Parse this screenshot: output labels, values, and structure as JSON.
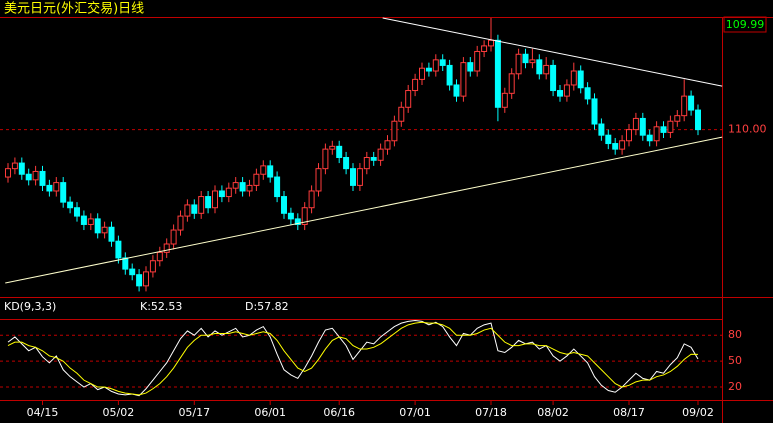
{
  "chart_data": {
    "type": "candlestick",
    "title": "美元日元(外汇交易)日线",
    "last_price": "109.99",
    "up_color": "#ff3c3c",
    "down_color": "#00ffff",
    "categories": [
      null,
      null,
      null,
      null,
      null,
      "04/15",
      null,
      null,
      null,
      null,
      null,
      null,
      null,
      null,
      null,
      null,
      "05/02",
      null,
      null,
      null,
      null,
      null,
      null,
      null,
      null,
      null,
      null,
      "05/17",
      null,
      null,
      null,
      null,
      null,
      null,
      null,
      null,
      null,
      null,
      "06/01",
      null,
      null,
      null,
      null,
      null,
      null,
      null,
      null,
      null,
      "06/16",
      null,
      null,
      null,
      null,
      null,
      null,
      null,
      null,
      null,
      null,
      "07/01",
      null,
      null,
      null,
      null,
      null,
      null,
      null,
      null,
      null,
      null,
      "07/18",
      null,
      null,
      null,
      null,
      null,
      null,
      null,
      null,
      "08/02",
      null,
      null,
      null,
      null,
      null,
      null,
      null,
      null,
      null,
      null,
      "08/17",
      null,
      null,
      null,
      null,
      null,
      null,
      null,
      null,
      null,
      "09/02"
    ],
    "open": [
      108.3,
      108.6,
      108.8,
      108.4,
      108.2,
      108.5,
      108.0,
      107.8,
      108.1,
      107.4,
      107.2,
      106.9,
      106.6,
      106.8,
      106.3,
      106.5,
      106.0,
      105.4,
      105.0,
      104.8,
      104.4,
      104.9,
      105.3,
      105.6,
      105.9,
      106.4,
      106.9,
      107.3,
      107.0,
      107.6,
      107.2,
      107.8,
      107.6,
      107.9,
      108.1,
      107.8,
      108.0,
      108.4,
      108.7,
      108.3,
      107.6,
      107.0,
      106.8,
      106.6,
      107.2,
      107.8,
      108.6,
      109.3,
      109.4,
      109.0,
      108.6,
      108.0,
      108.6,
      109.0,
      108.9,
      109.3,
      109.6,
      110.3,
      110.8,
      111.4,
      111.8,
      112.2,
      112.1,
      112.5,
      112.3,
      111.6,
      111.2,
      112.4,
      112.1,
      112.8,
      113.0,
      113.2,
      110.8,
      111.3,
      112.0,
      112.7,
      112.4,
      112.5,
      112.0,
      112.3,
      111.4,
      111.2,
      111.6,
      112.1,
      111.5,
      111.1,
      110.2,
      109.8,
      109.5,
      109.3,
      109.6,
      110.0,
      110.4,
      109.8,
      109.6,
      110.1,
      109.9,
      110.3,
      110.5,
      111.2,
      110.7
    ],
    "high": [
      108.8,
      109.0,
      109.0,
      108.6,
      108.7,
      108.7,
      108.2,
      108.3,
      108.3,
      107.6,
      107.4,
      107.1,
      107.0,
      107.0,
      106.7,
      106.7,
      106.2,
      105.6,
      105.2,
      105.0,
      105.1,
      105.5,
      105.8,
      106.1,
      106.6,
      107.1,
      107.5,
      107.5,
      107.8,
      107.8,
      108.0,
      108.0,
      108.1,
      108.3,
      108.3,
      108.2,
      108.6,
      108.9,
      108.9,
      108.5,
      107.8,
      107.2,
      107.0,
      107.4,
      108.0,
      108.8,
      109.5,
      109.6,
      109.6,
      109.2,
      108.8,
      108.8,
      109.2,
      109.2,
      109.5,
      109.8,
      110.5,
      111.0,
      111.6,
      112.0,
      112.4,
      112.4,
      112.7,
      112.7,
      112.5,
      111.8,
      112.6,
      112.6,
      113.0,
      113.2,
      114.0,
      113.4,
      111.5,
      112.2,
      112.9,
      112.9,
      112.9,
      112.7,
      112.6,
      112.5,
      111.6,
      111.8,
      112.4,
      112.3,
      111.7,
      111.3,
      110.4,
      110.0,
      109.7,
      109.8,
      110.2,
      110.6,
      110.6,
      110.0,
      110.3,
      110.3,
      110.5,
      110.7,
      111.8,
      111.4,
      110.9
    ],
    "low": [
      108.1,
      108.4,
      108.2,
      108.0,
      108.0,
      107.8,
      107.6,
      107.6,
      107.2,
      107.0,
      106.7,
      106.4,
      106.4,
      106.1,
      106.1,
      105.8,
      105.2,
      104.8,
      104.6,
      104.2,
      104.2,
      104.7,
      105.1,
      105.4,
      105.7,
      106.2,
      106.7,
      106.8,
      106.8,
      107.0,
      107.0,
      107.4,
      107.4,
      107.7,
      107.6,
      107.6,
      107.8,
      108.2,
      108.1,
      107.4,
      106.8,
      106.6,
      106.4,
      106.4,
      107.0,
      107.6,
      108.4,
      109.1,
      108.8,
      108.4,
      107.8,
      107.8,
      108.4,
      108.7,
      108.7,
      109.1,
      109.4,
      110.1,
      110.6,
      111.2,
      111.6,
      111.9,
      111.9,
      112.1,
      111.4,
      111.0,
      111.0,
      111.9,
      111.9,
      112.6,
      112.8,
      110.3,
      110.6,
      111.1,
      111.8,
      112.2,
      112.2,
      111.8,
      111.8,
      111.2,
      111.0,
      111.0,
      111.4,
      111.3,
      110.9,
      110.0,
      109.6,
      109.3,
      109.1,
      109.1,
      109.4,
      109.8,
      109.6,
      109.4,
      109.4,
      109.7,
      109.7,
      110.1,
      110.3,
      110.5,
      109.8
    ],
    "close": [
      108.6,
      108.8,
      108.4,
      108.2,
      108.5,
      108.0,
      107.8,
      108.1,
      107.4,
      107.2,
      106.9,
      106.6,
      106.8,
      106.3,
      106.5,
      106.0,
      105.4,
      105.0,
      104.8,
      104.4,
      104.9,
      105.3,
      105.6,
      105.9,
      106.4,
      106.9,
      107.3,
      107.0,
      107.6,
      107.2,
      107.8,
      107.6,
      107.9,
      108.1,
      107.8,
      108.0,
      108.4,
      108.7,
      108.3,
      107.6,
      107.0,
      106.8,
      106.6,
      107.2,
      107.8,
      108.6,
      109.3,
      109.4,
      109.0,
      108.6,
      108.0,
      108.6,
      109.0,
      108.9,
      109.3,
      109.6,
      110.3,
      110.8,
      111.4,
      111.8,
      112.2,
      112.1,
      112.5,
      112.3,
      111.6,
      111.2,
      112.4,
      112.1,
      112.8,
      113.0,
      113.2,
      110.8,
      111.3,
      112.0,
      112.7,
      112.4,
      112.5,
      112.0,
      112.3,
      111.4,
      111.2,
      111.6,
      112.1,
      111.5,
      111.1,
      110.2,
      109.8,
      109.5,
      109.3,
      109.6,
      110.0,
      110.4,
      109.8,
      109.6,
      110.1,
      109.9,
      110.3,
      110.5,
      111.2,
      110.7,
      110.0
    ],
    "ylim": [
      104,
      114
    ],
    "yticks": [
      {
        "value": 110,
        "label": "110.00"
      }
    ],
    "trendlines": [
      {
        "color": "#ffffff",
        "x": [
          54.3,
          103.5
        ],
        "y": [
          114,
          111.56
        ]
      },
      {
        "color": "#ffffcc",
        "x": [
          -0.4,
          103.5
        ],
        "y": [
          104.5,
          109.73
        ]
      }
    ],
    "indicator": {
      "title": "KD(9,3,3)",
      "k_label": "K:52.53",
      "d_label": "D:57.82",
      "ylim": [
        5,
        115
      ],
      "yticks": [
        20,
        50,
        80
      ],
      "series": [
        {
          "name": "K",
          "color": "#ffffff",
          "values": [
            72,
            78,
            70,
            62,
            66,
            55,
            48,
            56,
            40,
            32,
            26,
            20,
            24,
            17,
            20,
            15,
            12,
            11,
            12,
            10,
            18,
            28,
            38,
            48,
            62,
            76,
            85,
            80,
            88,
            78,
            85,
            80,
            84,
            88,
            78,
            80,
            86,
            90,
            78,
            58,
            40,
            34,
            30,
            42,
            56,
            72,
            86,
            88,
            78,
            68,
            52,
            62,
            72,
            70,
            78,
            84,
            90,
            94,
            96,
            97,
            96,
            92,
            95,
            90,
            78,
            68,
            82,
            80,
            88,
            92,
            94,
            62,
            60,
            66,
            74,
            70,
            72,
            64,
            68,
            56,
            50,
            56,
            64,
            56,
            48,
            32,
            22,
            16,
            14,
            20,
            28,
            36,
            30,
            28,
            38,
            36,
            46,
            54,
            70,
            66,
            52.53
          ]
        },
        {
          "name": "D",
          "color": "#ffff00",
          "values": [
            68,
            72,
            72,
            68,
            66,
            62,
            56,
            54,
            50,
            42,
            36,
            28,
            24,
            20,
            20,
            18,
            15,
            13,
            12,
            11,
            13,
            18,
            24,
            32,
            42,
            54,
            66,
            74,
            80,
            80,
            82,
            82,
            82,
            84,
            82,
            80,
            82,
            84,
            82,
            74,
            62,
            52,
            42,
            38,
            42,
            52,
            64,
            74,
            78,
            76,
            68,
            64,
            64,
            66,
            70,
            76,
            82,
            88,
            92,
            94,
            95,
            94,
            94,
            92,
            88,
            80,
            80,
            80,
            82,
            86,
            88,
            80,
            72,
            68,
            68,
            70,
            70,
            68,
            68,
            64,
            60,
            58,
            60,
            58,
            56,
            48,
            40,
            32,
            24,
            20,
            22,
            26,
            28,
            28,
            32,
            34,
            38,
            44,
            52,
            58,
            57.82
          ]
        }
      ]
    }
  }
}
